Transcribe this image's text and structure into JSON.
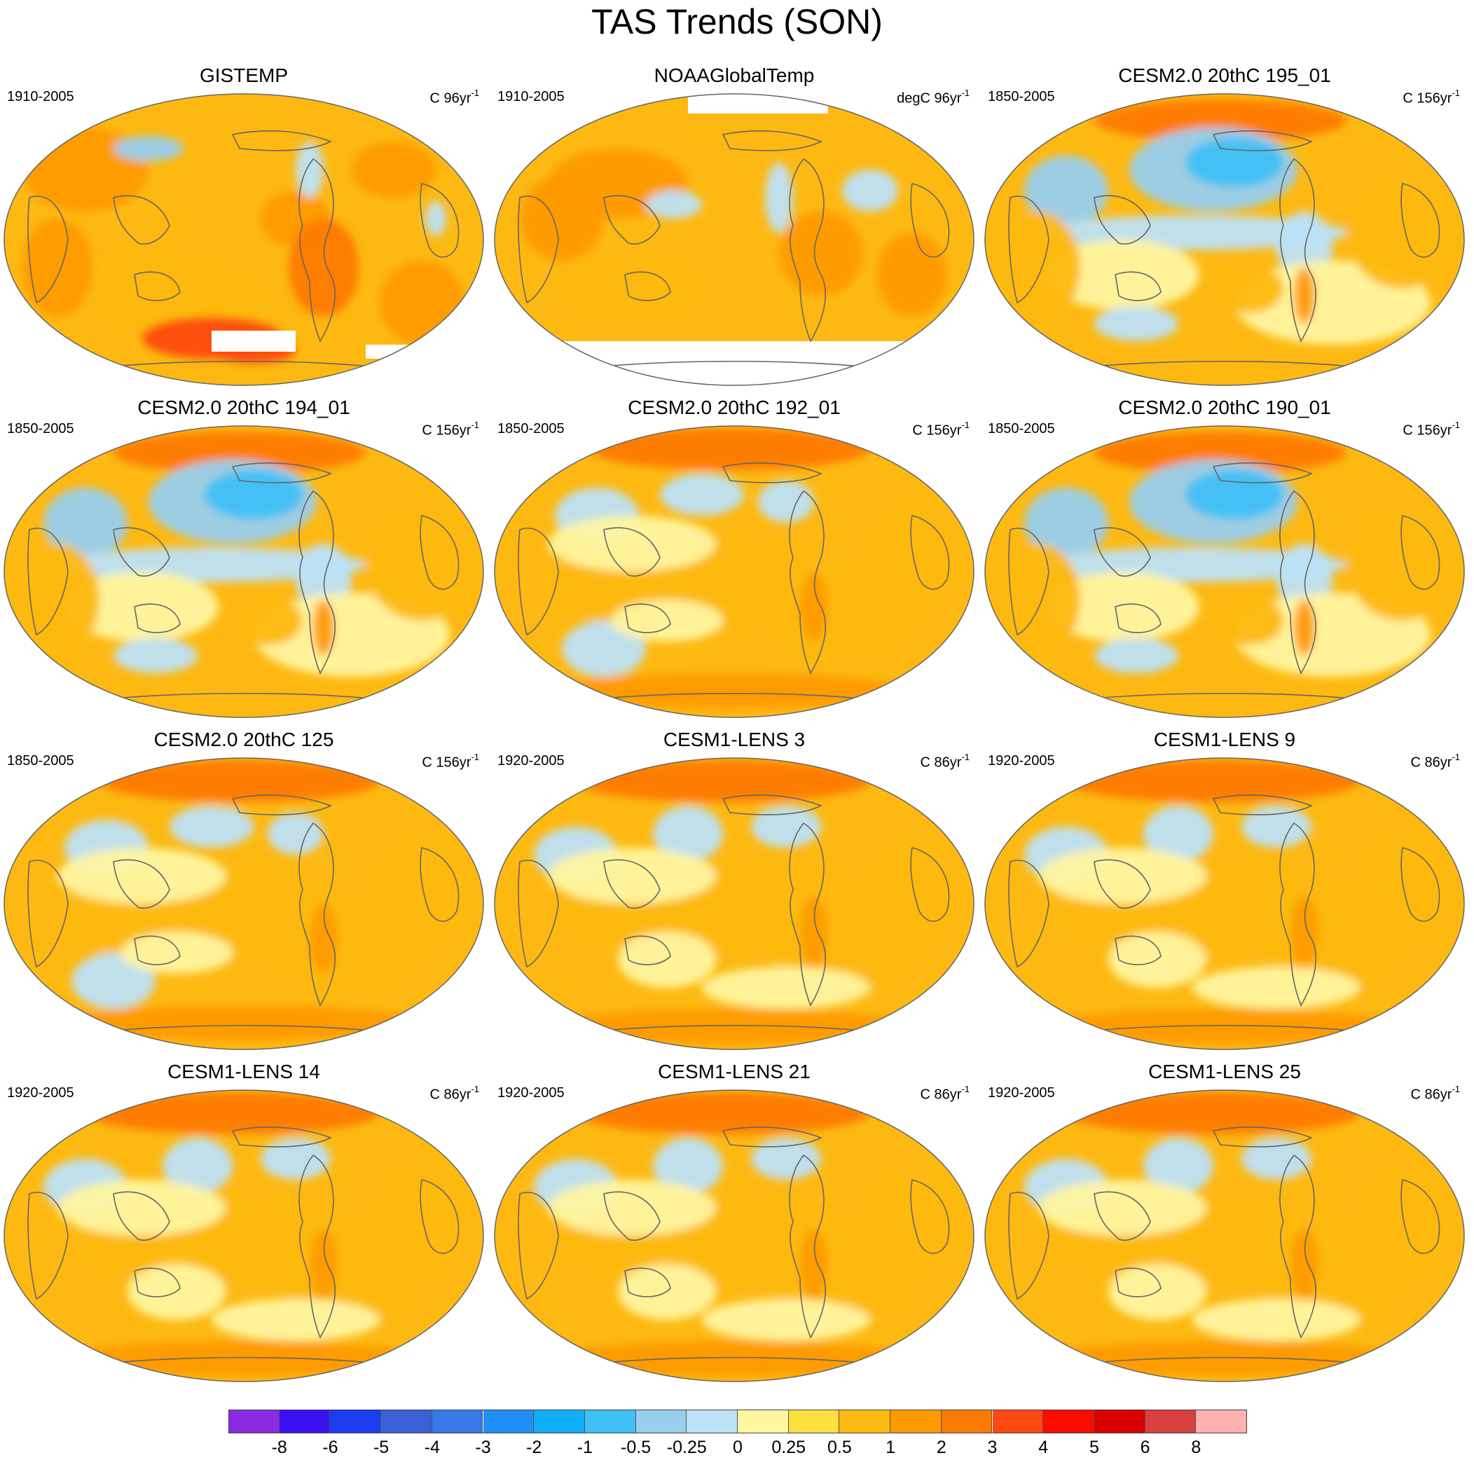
{
  "title": "TAS Trends (SON)",
  "colors": {
    "ocean_base": "#FDB912",
    "land_outline": "#666666",
    "map_border": "#666666"
  },
  "panels": [
    {
      "title": "GISTEMP",
      "period": "1910-2005",
      "units": "C 96yr",
      "units_sup": "-1",
      "profile": "obs1"
    },
    {
      "title": "NOAAGlobalTemp",
      "period": "1910-2005",
      "units": "degC 96yr",
      "units_sup": "-1",
      "profile": "obs2"
    },
    {
      "title": "CESM2.0 20thC 195_01",
      "period": "1850-2005",
      "units": "C 156yr",
      "units_sup": "-1",
      "profile": "cesm2a"
    },
    {
      "title": "CESM2.0 20thC 194_01",
      "period": "1850-2005",
      "units": "C 156yr",
      "units_sup": "-1",
      "profile": "cesm2a"
    },
    {
      "title": "CESM2.0 20thC 192_01",
      "period": "1850-2005",
      "units": "C 156yr",
      "units_sup": "-1",
      "profile": "cesm2b"
    },
    {
      "title": "CESM2.0 20thC 190_01",
      "period": "1850-2005",
      "units": "C 156yr",
      "units_sup": "-1",
      "profile": "cesm2a"
    },
    {
      "title": "CESM2.0 20thC 125",
      "period": "1850-2005",
      "units": "C 156yr",
      "units_sup": "-1",
      "profile": "cesm2b"
    },
    {
      "title": "CESM1-LENS 3",
      "period": "1920-2005",
      "units": "C 86yr",
      "units_sup": "-1",
      "profile": "lens"
    },
    {
      "title": "CESM1-LENS 9",
      "period": "1920-2005",
      "units": "C 86yr",
      "units_sup": "-1",
      "profile": "lens"
    },
    {
      "title": "CESM1-LENS 14",
      "period": "1920-2005",
      "units": "C 86yr",
      "units_sup": "-1",
      "profile": "lens"
    },
    {
      "title": "CESM1-LENS 21",
      "period": "1920-2005",
      "units": "C 86yr",
      "units_sup": "-1",
      "profile": "lens"
    },
    {
      "title": "CESM1-LENS 25",
      "period": "1920-2005",
      "units": "C 86yr",
      "units_sup": "-1",
      "profile": "lens"
    }
  ],
  "colorbar": {
    "labels": [
      "-8",
      "-6",
      "-5",
      "-4",
      "-3",
      "-2",
      "-1",
      "-0.5",
      "-0.25",
      "0",
      "0.25",
      "0.5",
      "1",
      "2",
      "3",
      "4",
      "5",
      "6",
      "8"
    ],
    "colors": [
      "#8A2BE2",
      "#3A10F0",
      "#1C3CF0",
      "#3A60D8",
      "#3878E8",
      "#2090F8",
      "#10AEF8",
      "#40C0F5",
      "#98CFEE",
      "#BDE1F7",
      "#FFF6A0",
      "#FFDF40",
      "#FDB912",
      "#FE9A00",
      "#FE7A00",
      "#FE4A10",
      "#FE0A00",
      "#D80000",
      "#D84040",
      "#FFB0B0"
    ]
  }
}
